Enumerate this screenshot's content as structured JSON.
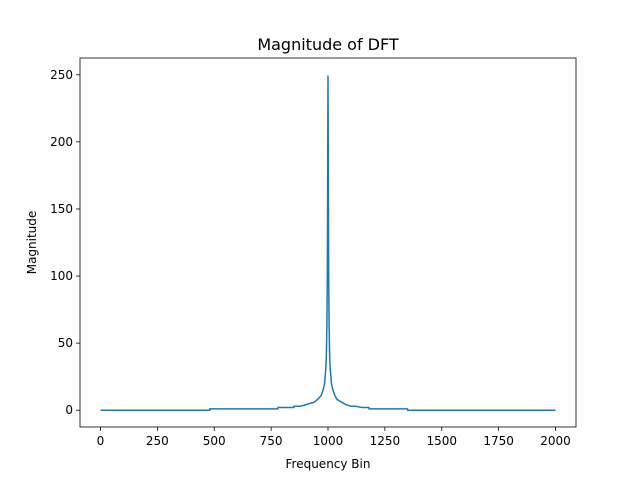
{
  "chart_data": {
    "type": "line",
    "title": "Magnitude of DFT",
    "xlabel": "Frequency Bin",
    "ylabel": "Magnitude",
    "xlim": [
      -90,
      2090
    ],
    "ylim": [
      -12.5,
      262.5
    ],
    "xticks": [
      0,
      250,
      500,
      750,
      1000,
      1250,
      1500,
      1750,
      2000
    ],
    "xtick_labels": [
      "0",
      "250",
      "500",
      "750",
      "1000",
      "1250",
      "1500",
      "1750",
      "2000"
    ],
    "yticks": [
      0,
      50,
      100,
      150,
      200,
      250
    ],
    "ytick_labels": [
      "0",
      "50",
      "100",
      "150",
      "200",
      "250"
    ],
    "grid": false,
    "series": [
      {
        "color": "#1f77b4",
        "x": [
          0,
          480,
          480,
          780,
          780,
          850,
          850,
          880,
          900,
          920,
          940,
          960,
          970,
          980,
          985,
          990,
          993,
          995,
          997,
          998,
          999,
          1000,
          1001,
          1002,
          1003,
          1005,
          1007,
          1010,
          1015,
          1020,
          1030,
          1040,
          1060,
          1080,
          1100,
          1120,
          1150,
          1180,
          1180,
          1350,
          1350,
          2000
        ],
        "y": [
          0,
          0,
          1,
          1,
          2,
          2,
          3,
          3,
          4,
          5,
          6,
          9,
          11,
          16,
          20,
          30,
          42,
          62,
          100,
          140,
          200,
          249,
          200,
          140,
          100,
          62,
          42,
          30,
          20,
          16,
          11,
          8,
          6,
          4,
          3,
          3,
          2,
          2,
          1,
          1,
          0,
          0
        ]
      }
    ]
  }
}
